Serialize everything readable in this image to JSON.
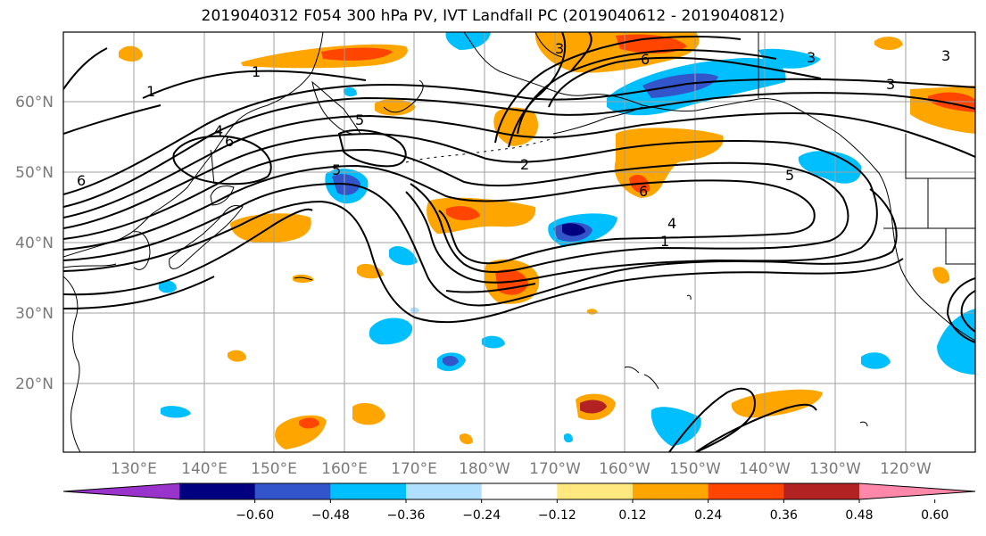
{
  "title": "2019040312 F054 300 hPa PV, IVT Landfall PC (2019040612 - 2019040812)",
  "lat_labels": [
    "60°N",
    "50°N",
    "40°N",
    "30°N",
    "20°N"
  ],
  "lon_labels": [
    "130°E",
    "140°E",
    "150°E",
    "160°E",
    "170°E",
    "180°W",
    "170°W",
    "160°W",
    "150°W",
    "140°W",
    "130°W",
    "120°W"
  ],
  "colorbar": {
    "ticks": [
      "−0.60",
      "−0.48",
      "−0.36",
      "−0.24",
      "−0.12",
      "0.12",
      "0.24",
      "0.36",
      "0.48",
      "0.60"
    ],
    "colors": [
      "#9933cc",
      "#000080",
      "#3355cc",
      "#00bfff",
      "#b0e0ff",
      "#ffffff",
      "#ffe880",
      "#ffa500",
      "#ff4500",
      "#b22222",
      "#ff88aa"
    ]
  },
  "contour_labels": [
    "1",
    "1",
    "1",
    "2",
    "3",
    "3",
    "3",
    "3",
    "4",
    "4",
    "5",
    "5",
    "5",
    "6",
    "6",
    "6",
    "6"
  ]
}
